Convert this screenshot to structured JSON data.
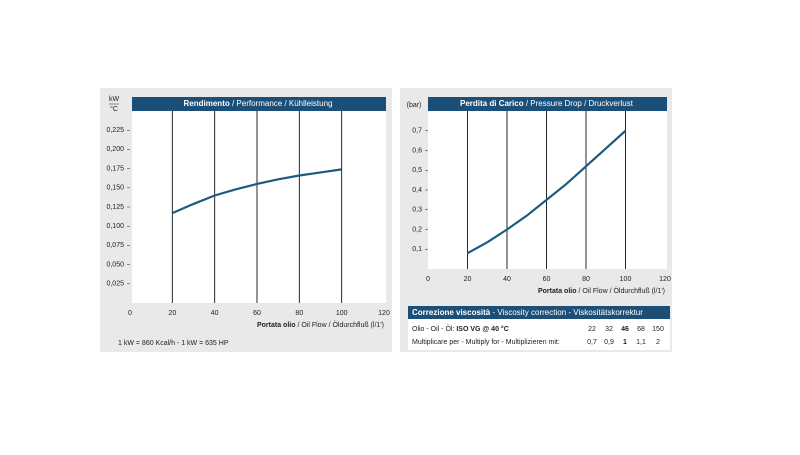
{
  "chart_data": [
    {
      "type": "line",
      "title": "Rendimento",
      "title_translations": "/ Performance / Kühlleistung",
      "ylabel": "kW",
      "ylabel_denominator": "°C",
      "xlabel": "Portata olio",
      "xlabel_translations": "/ Oil Flow / Öldurchfluß",
      "xunit": "(l/1')",
      "x": [
        20,
        30,
        40,
        50,
        60,
        70,
        80,
        90,
        100
      ],
      "series": [
        {
          "name": "Rendimento",
          "color": "#1d5b7e",
          "values": [
            0.117,
            0.129,
            0.14,
            0.148,
            0.155,
            0.161,
            0.166,
            0.17,
            0.174
          ]
        }
      ],
      "xlim": [
        0,
        120
      ],
      "xticks": [
        0,
        20,
        40,
        60,
        80,
        100,
        120
      ],
      "ylim": [
        0,
        0.25
      ],
      "yticks": [
        {
          "value": 0.025,
          "label": "0,025"
        },
        {
          "value": 0.05,
          "label": "0,050"
        },
        {
          "value": 0.075,
          "label": "0,075"
        },
        {
          "value": 0.1,
          "label": "0,100"
        },
        {
          "value": 0.125,
          "label": "0,125"
        },
        {
          "value": 0.15,
          "label": "0,150"
        },
        {
          "value": 0.175,
          "label": "0,175"
        },
        {
          "value": 0.2,
          "label": "0,200"
        },
        {
          "value": 0.225,
          "label": "0,225"
        }
      ],
      "grid": "x"
    },
    {
      "type": "line",
      "title": "Perdita di Carico",
      "title_translations": "/ Pressure Drop / Druckverlust",
      "ylabel": "(bar)",
      "xlabel": "Portata olio",
      "xlabel_translations": "/ Oil Flow / Öldurchfluß",
      "xunit": "(l/1')",
      "x": [
        20,
        30,
        40,
        50,
        60,
        70,
        80,
        90,
        100
      ],
      "series": [
        {
          "name": "Perdita di Carico",
          "color": "#1d5b7e",
          "values": [
            0.08,
            0.135,
            0.2,
            0.27,
            0.35,
            0.43,
            0.52,
            0.61,
            0.7
          ]
        }
      ],
      "xlim": [
        0,
        120
      ],
      "xticks": [
        0,
        20,
        40,
        60,
        80,
        100,
        120
      ],
      "ylim": [
        0,
        0.8
      ],
      "yticks": [
        {
          "value": 0.1,
          "label": "0,1"
        },
        {
          "value": 0.2,
          "label": "0,2"
        },
        {
          "value": 0.3,
          "label": "0,3"
        },
        {
          "value": 0.4,
          "label": "0,4"
        },
        {
          "value": 0.5,
          "label": "0,5"
        },
        {
          "value": 0.6,
          "label": "0,6"
        },
        {
          "value": 0.7,
          "label": "0,7"
        }
      ],
      "grid": "x"
    }
  ],
  "note": "1 kW = 860 Kcal/h - 1 kW = 635 HP",
  "viscosity_table": {
    "title": "Correzione viscosità",
    "title_translations": "- Viscosity correction - Viskositätskorrektur",
    "rows": [
      {
        "label": "Olio - Oil - Öl:",
        "label_bold": "ISO VG @ 40 °C",
        "cells": [
          "22",
          "32",
          "46",
          "68",
          "150"
        ]
      },
      {
        "label": "Multiplicare per - Multiply for - Multiplizieren mit:",
        "cells": [
          "0,7",
          "0,9",
          "1",
          "1,1",
          "2"
        ]
      }
    ]
  }
}
